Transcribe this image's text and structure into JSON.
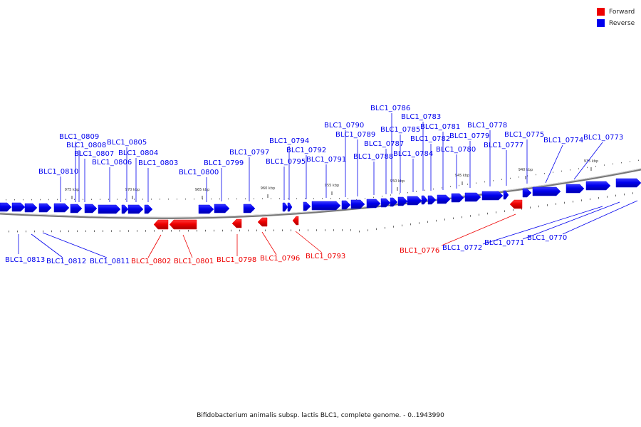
{
  "legend": {
    "forward": "Forward",
    "reverse": "Reverse"
  },
  "colors": {
    "forward": "#ee0000",
    "reverse": "#0000ee"
  },
  "caption": "Bifidobacterium animalis subsp. lactis BLC1, complete genome. - 0..1943990",
  "scale_labels": [
    "975 kbp",
    "970 kbp",
    "965 kbp",
    "960 kbp",
    "955 kbp",
    "950 kbp",
    "945 kbp",
    "940 kbp",
    "935 kbp"
  ],
  "genes": [
    {
      "name": "BLC1_0813",
      "strand": "reverse"
    },
    {
      "name": "BLC1_0812",
      "strand": "reverse"
    },
    {
      "name": "BLC1_0811",
      "strand": "reverse"
    },
    {
      "name": "BLC1_0810",
      "strand": "reverse"
    },
    {
      "name": "BLC1_0809",
      "strand": "reverse"
    },
    {
      "name": "BLC1_0808",
      "strand": "reverse"
    },
    {
      "name": "BLC1_0807",
      "strand": "reverse"
    },
    {
      "name": "BLC1_0806",
      "strand": "reverse"
    },
    {
      "name": "BLC1_0805",
      "strand": "reverse"
    },
    {
      "name": "BLC1_0804",
      "strand": "reverse"
    },
    {
      "name": "BLC1_0803",
      "strand": "reverse"
    },
    {
      "name": "BLC1_0802",
      "strand": "forward"
    },
    {
      "name": "BLC1_0801",
      "strand": "forward"
    },
    {
      "name": "BLC1_0800",
      "strand": "reverse"
    },
    {
      "name": "BLC1_0799",
      "strand": "reverse"
    },
    {
      "name": "BLC1_0798",
      "strand": "forward"
    },
    {
      "name": "BLC1_0797",
      "strand": "reverse"
    },
    {
      "name": "BLC1_0796",
      "strand": "forward"
    },
    {
      "name": "BLC1_0795",
      "strand": "reverse"
    },
    {
      "name": "BLC1_0794",
      "strand": "reverse"
    },
    {
      "name": "BLC1_0793",
      "strand": "forward"
    },
    {
      "name": "BLC1_0792",
      "strand": "reverse"
    },
    {
      "name": "BLC1_0791",
      "strand": "reverse"
    },
    {
      "name": "BLC1_0790",
      "strand": "reverse"
    },
    {
      "name": "BLC1_0789",
      "strand": "reverse"
    },
    {
      "name": "BLC1_0788",
      "strand": "reverse"
    },
    {
      "name": "BLC1_0787",
      "strand": "reverse"
    },
    {
      "name": "BLC1_0786",
      "strand": "reverse"
    },
    {
      "name": "BLC1_0785",
      "strand": "reverse"
    },
    {
      "name": "BLC1_0784",
      "strand": "reverse"
    },
    {
      "name": "BLC1_0783",
      "strand": "reverse"
    },
    {
      "name": "BLC1_0782",
      "strand": "reverse"
    },
    {
      "name": "BLC1_0781",
      "strand": "reverse"
    },
    {
      "name": "BLC1_0780",
      "strand": "reverse"
    },
    {
      "name": "BLC1_0779",
      "strand": "reverse"
    },
    {
      "name": "BLC1_0778",
      "strand": "reverse"
    },
    {
      "name": "BLC1_0777",
      "strand": "reverse"
    },
    {
      "name": "BLC1_0776",
      "strand": "forward"
    },
    {
      "name": "BLC1_0775",
      "strand": "reverse"
    },
    {
      "name": "BLC1_0774",
      "strand": "reverse"
    },
    {
      "name": "BLC1_0773",
      "strand": "reverse"
    },
    {
      "name": "BLC1_0772",
      "strand": "reverse"
    },
    {
      "name": "BLC1_0771",
      "strand": "reverse"
    },
    {
      "name": "BLC1_0770",
      "strand": "reverse"
    }
  ]
}
